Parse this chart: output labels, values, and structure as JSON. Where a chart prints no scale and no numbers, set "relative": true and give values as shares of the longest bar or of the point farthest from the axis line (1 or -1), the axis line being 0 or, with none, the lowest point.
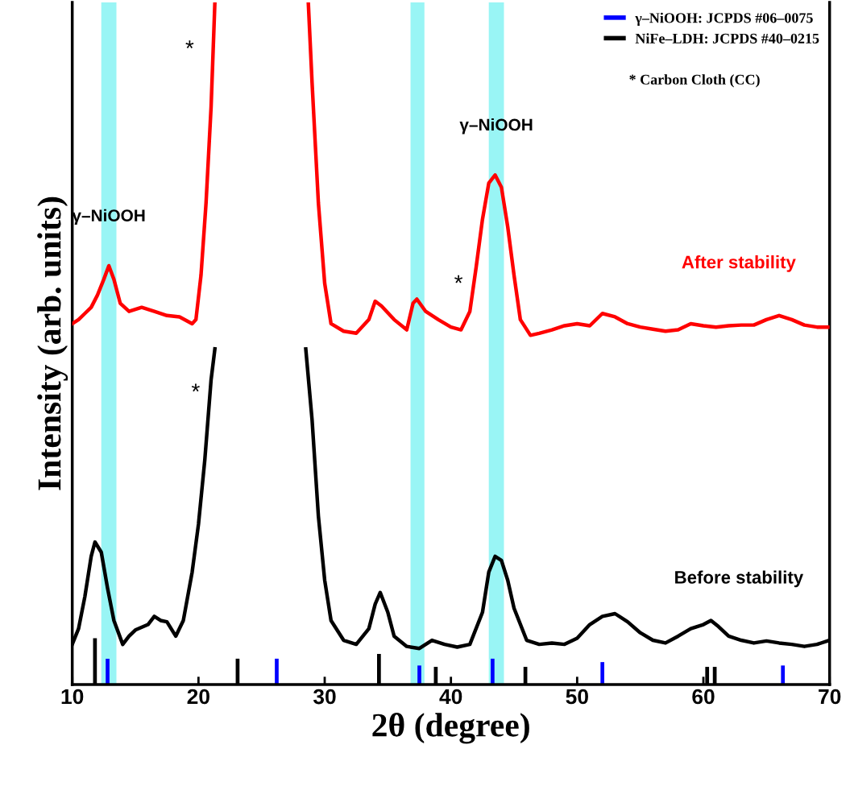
{
  "chart_data": {
    "type": "line",
    "xlabel": "2θ (degree)",
    "ylabel": "Intensity (arb. units)",
    "relative": true,
    "xlim": [
      10,
      70
    ],
    "xticks": [
      10,
      20,
      30,
      40,
      50,
      60,
      70
    ],
    "tick_labels": "x",
    "legend": "top right",
    "grid": false,
    "series": [
      {
        "name": "After stability",
        "color": "#ff0000",
        "x": [
          10,
          10.5,
          11,
          11.5,
          12,
          12.5,
          12.9,
          13.3,
          13.8,
          14.5,
          15.5,
          16.5,
          17.5,
          18.5,
          19.5,
          19.8,
          20.2,
          20.6,
          21,
          21.3,
          25,
          28.7,
          29,
          29.5,
          30,
          30.5,
          31.5,
          32.5,
          33.5,
          34,
          34.5,
          35.5,
          36.5,
          37,
          37.3,
          38,
          39,
          40,
          40.8,
          41.5,
          42,
          42.5,
          43,
          43.5,
          44,
          44.5,
          45,
          45.5,
          46.3,
          47,
          48,
          49,
          50,
          51,
          52,
          53,
          54,
          55,
          56,
          57,
          58,
          59,
          60,
          61,
          62,
          63,
          64,
          65,
          66,
          67,
          68,
          69,
          70
        ],
        "values": [
          0.529,
          0.535,
          0.544,
          0.553,
          0.571,
          0.594,
          0.614,
          0.594,
          0.559,
          0.547,
          0.553,
          0.547,
          0.541,
          0.539,
          0.529,
          0.535,
          0.6,
          0.706,
          0.847,
          1.0,
          null,
          1.0,
          0.882,
          0.706,
          0.588,
          0.529,
          0.518,
          0.515,
          0.535,
          0.562,
          0.555,
          0.535,
          0.52,
          0.559,
          0.565,
          0.547,
          0.535,
          0.524,
          0.52,
          0.547,
          0.612,
          0.682,
          0.735,
          0.747,
          0.729,
          0.671,
          0.6,
          0.535,
          0.512,
          0.515,
          0.52,
          0.526,
          0.529,
          0.526,
          0.544,
          0.539,
          0.529,
          0.524,
          0.521,
          0.518,
          0.52,
          0.529,
          0.526,
          0.524,
          0.526,
          0.527,
          0.527,
          0.535,
          0.541,
          0.535,
          0.527,
          0.524,
          0.524
        ]
      },
      {
        "name": "Before stability",
        "color": "#000000",
        "x": [
          10,
          10.5,
          11,
          11.5,
          11.8,
          12.3,
          12.8,
          13.3,
          14,
          14.5,
          15,
          16,
          16.5,
          17,
          17.5,
          18.2,
          18.8,
          19.5,
          20,
          20.5,
          21,
          21.3,
          25,
          28.5,
          29,
          29.5,
          30,
          30.5,
          31.5,
          32.5,
          33.5,
          34,
          34.4,
          35,
          35.5,
          36.5,
          37.5,
          38.5,
          39.5,
          40.5,
          41.5,
          42.5,
          43,
          43.5,
          44,
          44.5,
          45,
          46,
          47,
          48,
          49,
          50,
          51,
          52,
          53,
          54,
          55,
          56,
          57,
          58,
          59,
          60,
          60.6,
          61.2,
          62,
          63,
          64,
          65,
          66,
          67,
          68,
          69,
          70
        ],
        "values": [
          0.059,
          0.082,
          0.129,
          0.188,
          0.209,
          0.194,
          0.141,
          0.094,
          0.059,
          0.071,
          0.08,
          0.088,
          0.1,
          0.094,
          0.092,
          0.071,
          0.094,
          0.165,
          0.235,
          0.329,
          0.447,
          0.492,
          null,
          0.492,
          0.388,
          0.247,
          0.153,
          0.094,
          0.065,
          0.059,
          0.082,
          0.118,
          0.135,
          0.106,
          0.071,
          0.056,
          0.053,
          0.065,
          0.059,
          0.055,
          0.059,
          0.106,
          0.165,
          0.188,
          0.182,
          0.153,
          0.112,
          0.065,
          0.059,
          0.061,
          0.059,
          0.068,
          0.088,
          0.1,
          0.104,
          0.092,
          0.076,
          0.065,
          0.061,
          0.071,
          0.082,
          0.088,
          0.094,
          0.085,
          0.071,
          0.065,
          0.061,
          0.064,
          0.061,
          0.059,
          0.056,
          0.059,
          0.065
        ]
      },
      {
        "name": "γ–NiOOH: JCPDS #06–0075",
        "type": "bar",
        "color": "#0000ff",
        "x": [
          12.8,
          26.2,
          37.5,
          43.3,
          52,
          66.3
        ],
        "values": [
          0.038,
          0.038,
          0.028,
          0.038,
          0.033,
          0.028
        ]
      },
      {
        "name": "NiFe–LDH: JCPDS #40–0215",
        "type": "bar",
        "color": "#000000",
        "x": [
          11.8,
          23.1,
          34.3,
          38.8,
          45.9,
          60.3,
          60.9
        ],
        "values": [
          0.068,
          0.038,
          0.045,
          0.026,
          0.026,
          0.026,
          0.026
        ]
      }
    ],
    "bands": [
      {
        "axis": "x",
        "from": 12.3,
        "to": 13.5,
        "label": "γ–NiOOH",
        "color": "#99f5f5"
      },
      {
        "axis": "x",
        "from": 36.8,
        "to": 37.9,
        "color": "#99f5f5"
      },
      {
        "axis": "x",
        "from": 43.0,
        "to": 44.2,
        "label": "γ–NiOOH",
        "color": "#99f5f5"
      }
    ],
    "annotations": [
      "*",
      "*",
      "*",
      "* Carbon Cloth (CC)"
    ]
  }
}
